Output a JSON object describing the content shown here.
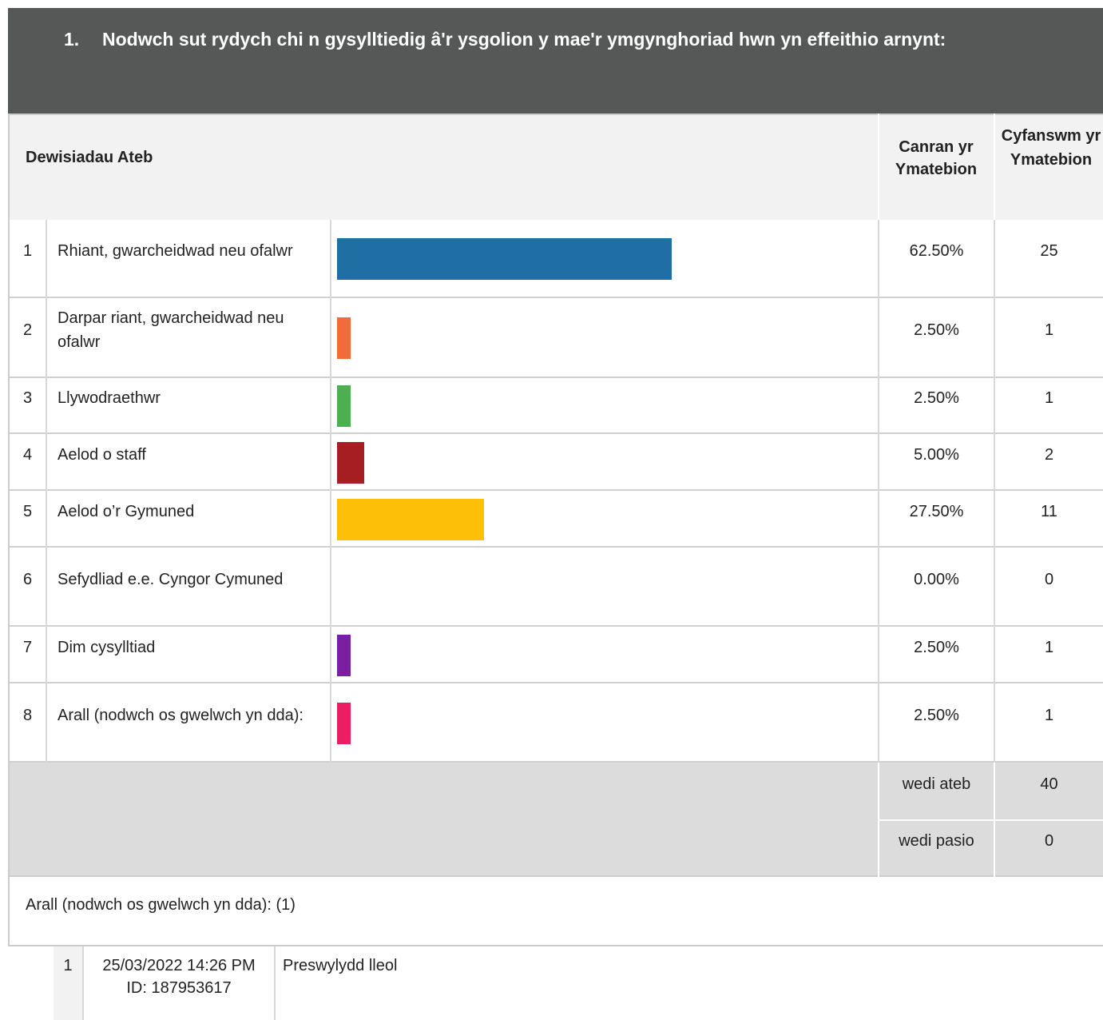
{
  "question": {
    "number": "1.",
    "title": "Nodwch sut rydych chi n gysylltiedig â'r ysgolion y mae'r ymgynghoriad hwn yn effeithio arnynt:"
  },
  "table": {
    "headers": {
      "choices": "Dewisiadau Ateb",
      "percent": "Canran yr Ymatebion",
      "count": "Cyfanswm yr Ymatebion"
    },
    "rows": [
      {
        "number": "1",
        "label": "Rhiant, gwarcheidwad neu ofalwr",
        "percent": {
          "value": 62.5,
          "label": "62.50%"
        },
        "count": 25,
        "color": "#1f6fa5"
      },
      {
        "number": "2",
        "label": "Darpar riant, gwarcheidwad neu ofalwr",
        "percent": {
          "value": 2.5,
          "label": "2.50%"
        },
        "count": 1,
        "color": "#f26b38"
      },
      {
        "number": "3",
        "label": "Llywodraethwr",
        "percent": {
          "value": 2.5,
          "label": "2.50%"
        },
        "count": 1,
        "color": "#4caf50"
      },
      {
        "number": "4",
        "label": "Aelod o staff",
        "percent": {
          "value": 5,
          "label": "5.00%"
        },
        "count": 2,
        "color": "#a51e22"
      },
      {
        "number": "5",
        "label": "Aelod o’r Gymuned",
        "percent": {
          "value": 27.5,
          "label": "27.50%"
        },
        "count": 11,
        "color": "#fdbf08"
      },
      {
        "number": "6",
        "label": "Sefydliad e.e. Cyngor Cymuned",
        "percent": {
          "value": 0,
          "label": "0.00%"
        },
        "count": 0,
        "color": "#888888"
      },
      {
        "number": "7",
        "label": "Dim cysylltiad",
        "percent": {
          "value": 2.5,
          "label": "2.50%"
        },
        "count": 1,
        "color": "#7b1fa2"
      },
      {
        "number": "8",
        "label": "Arall (nodwch os gwelwch yn dda):",
        "percent": {
          "value": 2.5,
          "label": "2.50%"
        },
        "count": 1,
        "color": "#e91e63"
      }
    ],
    "summary": [
      {
        "label": "wedi ateb",
        "count": 40
      },
      {
        "label": "wedi pasio",
        "count": 0
      }
    ]
  },
  "other": {
    "title": "Arall (nodwch os gwelwch yn dda): (1)",
    "responses": [
      {
        "number": "1",
        "date": "25/03/2022 14:26 PM",
        "id": "ID: 187953617",
        "text": "Preswylydd lleol"
      }
    ]
  }
}
